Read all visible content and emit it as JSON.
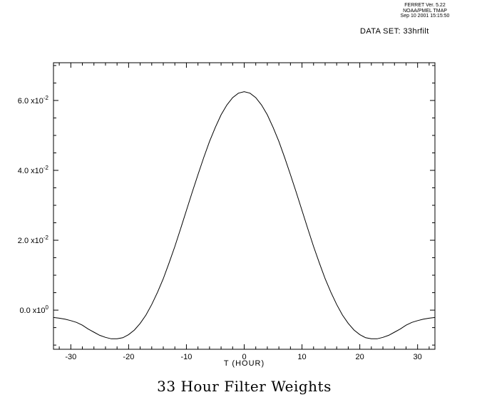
{
  "header": {
    "line1": "FERRET Ver. 5.22",
    "line2": "NOAA/PMEL TMAP",
    "line3": "Sep 10 2001 15:15:50"
  },
  "dataset_label": "DATA SET: 33hrfilt",
  "title": "33 Hour Filter Weights",
  "chart_data": {
    "type": "line",
    "title": "33 Hour Filter Weights",
    "xlabel": "T (HOUR)",
    "ylabel": "",
    "xlim": [
      -33,
      33
    ],
    "ylim": [
      -0.0112,
      0.0708
    ],
    "grid": false,
    "legend": null,
    "line_color": "#000000",
    "x_major_ticks": [
      -30,
      -20,
      -10,
      0,
      10,
      20,
      30
    ],
    "x_minor_step": 2,
    "y_major_ticks": [
      0,
      0.02,
      0.04,
      0.06
    ],
    "y_minor_step": 0.005,
    "y_tick_labels": [
      {
        "mantissa": "0.0",
        "exponent": "0"
      },
      {
        "mantissa": "2.0",
        "exponent": "-2"
      },
      {
        "mantissa": "4.0",
        "exponent": "-2"
      },
      {
        "mantissa": "6.0",
        "exponent": "-2"
      }
    ],
    "x": [
      -33,
      -32,
      -31,
      -30,
      -29,
      -28,
      -27,
      -26,
      -25,
      -24,
      -23,
      -22,
      -21,
      -20,
      -19,
      -18,
      -17,
      -16,
      -15,
      -14,
      -13,
      -12,
      -11,
      -10,
      -9,
      -8,
      -7,
      -6,
      -5,
      -4,
      -3,
      -2,
      -1,
      0,
      1,
      2,
      3,
      4,
      5,
      6,
      7,
      8,
      9,
      10,
      11,
      12,
      13,
      14,
      15,
      16,
      17,
      18,
      19,
      20,
      21,
      22,
      23,
      24,
      25,
      26,
      27,
      28,
      29,
      30,
      31,
      32,
      33
    ],
    "y": [
      -0.0021,
      -0.0023,
      -0.0026,
      -0.003,
      -0.0035,
      -0.0043,
      -0.0054,
      -0.0063,
      -0.0072,
      -0.0078,
      -0.0082,
      -0.0082,
      -0.0079,
      -0.007,
      -0.0057,
      -0.0038,
      -0.0014,
      0.0016,
      0.0051,
      0.009,
      0.0135,
      0.0182,
      0.0233,
      0.0285,
      0.0337,
      0.0388,
      0.0437,
      0.0483,
      0.0523,
      0.0559,
      0.0587,
      0.0608,
      0.0621,
      0.0625,
      0.0621,
      0.0608,
      0.0587,
      0.0559,
      0.0523,
      0.0483,
      0.0437,
      0.0388,
      0.0337,
      0.0285,
      0.0233,
      0.0182,
      0.0135,
      0.009,
      0.0051,
      0.0016,
      -0.0014,
      -0.0038,
      -0.0057,
      -0.007,
      -0.0079,
      -0.0082,
      -0.0082,
      -0.0078,
      -0.0072,
      -0.0063,
      -0.0054,
      -0.0043,
      -0.0035,
      -0.003,
      -0.0026,
      -0.0023,
      -0.0021
    ]
  }
}
